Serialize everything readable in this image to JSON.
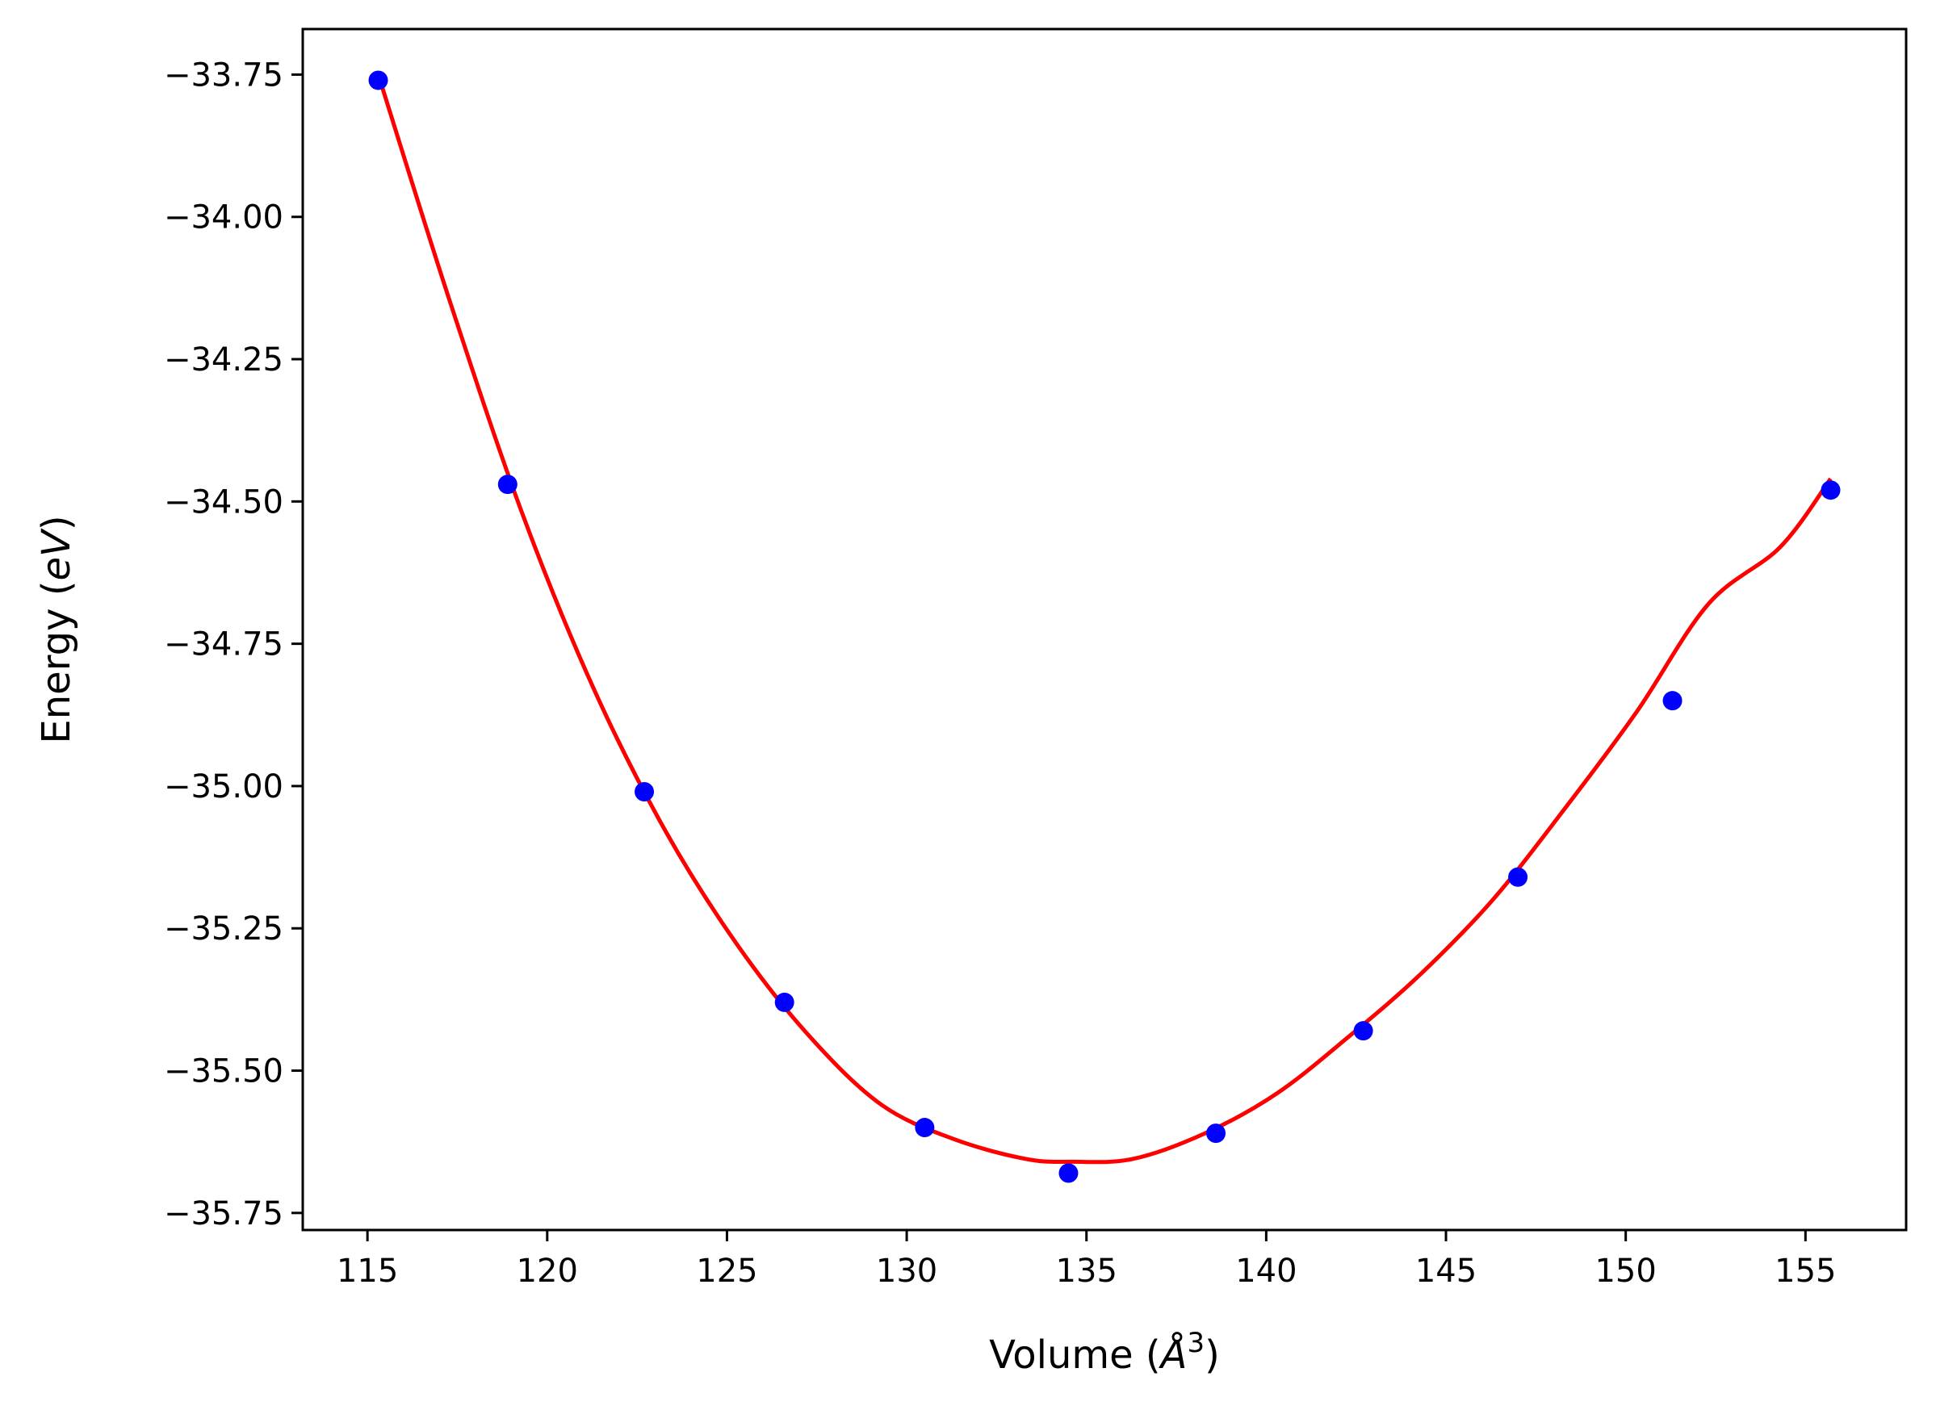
{
  "chart_data": {
    "type": "scatter",
    "title": "",
    "xlabel": {
      "prefix": "Volume (",
      "symbol": "Å",
      "sup": "3",
      "suffix": ")"
    },
    "ylabel": {
      "prefix": "Energy (",
      "italic": "eV",
      "suffix": ")"
    },
    "xlim": [
      113.2,
      157.8
    ],
    "ylim": [
      -35.78,
      -33.67
    ],
    "x_ticks": [
      115,
      120,
      125,
      130,
      135,
      140,
      145,
      150,
      155
    ],
    "x_tick_labels": [
      "115",
      "120",
      "125",
      "130",
      "135",
      "140",
      "145",
      "150",
      "155"
    ],
    "y_ticks": [
      -33.75,
      -34.0,
      -34.25,
      -34.5,
      -34.75,
      -35.0,
      -35.25,
      -35.5,
      -35.75
    ],
    "y_tick_labels": [
      "−33.75",
      "−34.00",
      "−34.25",
      "−34.50",
      "−34.75",
      "−35.00",
      "−35.25",
      "−35.50",
      "−35.75"
    ],
    "grid": false,
    "series": [
      {
        "kind": "points",
        "color": "#0000ff",
        "x": [
          115.3,
          118.9,
          122.7,
          126.6,
          130.5,
          134.5,
          138.6,
          142.7,
          147.0,
          151.3,
          155.7
        ],
        "y": [
          -33.76,
          -34.47,
          -35.01,
          -35.38,
          -35.6,
          -35.68,
          -35.61,
          -35.43,
          -35.16,
          -34.85,
          -34.48
        ]
      },
      {
        "kind": "fit-curve",
        "color": "#ff0000",
        "x": [
          115.3,
          117.3,
          119.3,
          121.3,
          123.3,
          125.3,
          127.3,
          129.3,
          131.3,
          133.3,
          134.6,
          136.3,
          138.3,
          140.3,
          142.3,
          144.3,
          146.3,
          148.3,
          150.3,
          152.3,
          154.3,
          155.7
        ],
        "y": [
          -33.75,
          -34.15,
          -34.52,
          -34.83,
          -35.08,
          -35.28,
          -35.44,
          -35.56,
          -35.62,
          -35.655,
          -35.66,
          -35.655,
          -35.61,
          -35.54,
          -35.44,
          -35.33,
          -35.2,
          -35.04,
          -34.87,
          -34.68,
          -34.58,
          -34.46
        ]
      }
    ]
  }
}
